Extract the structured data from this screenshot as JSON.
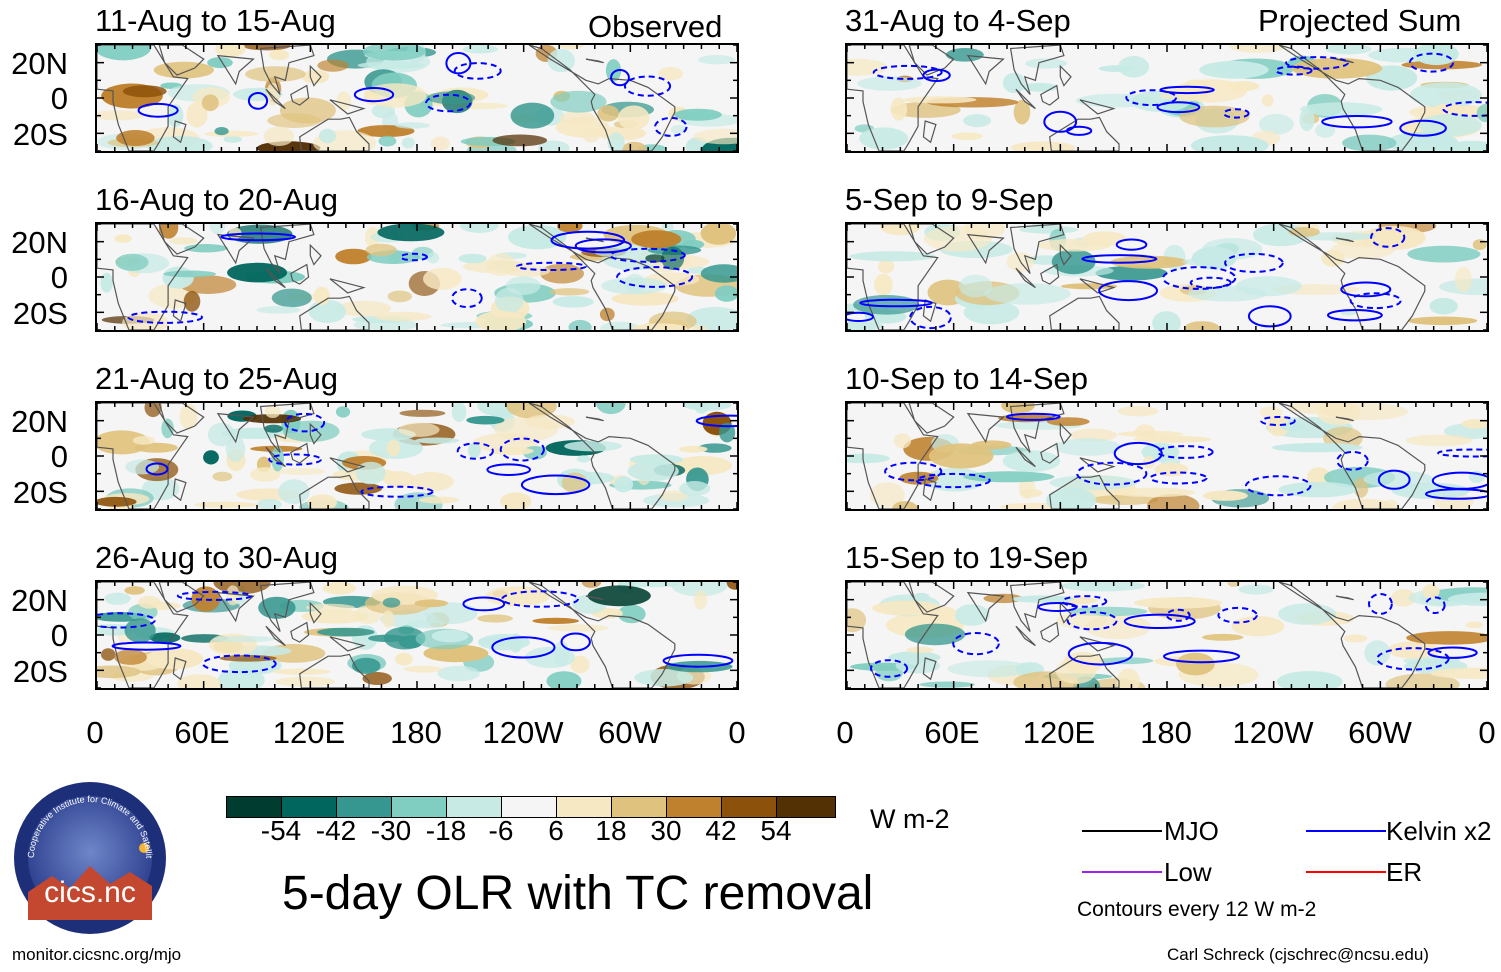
{
  "figure": {
    "title": "5-day OLR with TC removal",
    "units": "W m-2",
    "left_column_label": "Observed",
    "right_column_label": "Projected Sum",
    "source_url": "monitor.cicsnc.org/mjo",
    "credit": "Carl Schreck (cjschrec@ncsu.edu)",
    "logo_text": "cics.nc",
    "logo_ring_text": "Cooperative Institute for Climate and Satellites"
  },
  "panels": {
    "observed": [
      {
        "title": "11-Aug to 15-Aug"
      },
      {
        "title": "16-Aug to 20-Aug"
      },
      {
        "title": "21-Aug to 25-Aug"
      },
      {
        "title": "26-Aug to 30-Aug"
      }
    ],
    "projected": [
      {
        "title": "31-Aug to 4-Sep"
      },
      {
        "title": "5-Sep to 9-Sep"
      },
      {
        "title": "10-Sep to 14-Sep"
      },
      {
        "title": "15-Sep to 19-Sep"
      }
    ]
  },
  "axes": {
    "lat_ticks": [
      "20N",
      "0",
      "20S"
    ],
    "lon_ticks": [
      "0",
      "60E",
      "120E",
      "180",
      "120W",
      "60W",
      "0"
    ]
  },
  "colorbar": {
    "tick_labels": [
      "-54",
      "-42",
      "-30",
      "-18",
      "-6",
      "6",
      "18",
      "30",
      "42",
      "54"
    ],
    "colors": [
      "#003c30",
      "#01665e",
      "#35978f",
      "#80cdc1",
      "#c7eae5",
      "#f5f5f5",
      "#f6e8c3",
      "#dfc27d",
      "#bf812d",
      "#8c510a",
      "#543005"
    ]
  },
  "legend": {
    "items": [
      {
        "label": "MJO",
        "color": "#000000"
      },
      {
        "label": "Kelvin x2",
        "color": "#0000ff"
      },
      {
        "label": "Low",
        "color": "#a020f0"
      },
      {
        "label": "ER",
        "color": "#ff0000"
      }
    ],
    "contour_note": "Contours every 12 W m-2"
  }
}
